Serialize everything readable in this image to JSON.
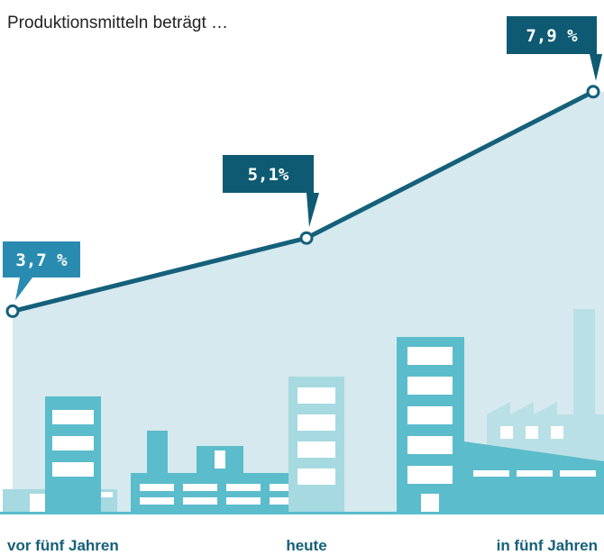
{
  "chart_data": {
    "type": "line",
    "title": "Produktionsmitteln beträgt …",
    "categories": [
      "vor fünf Jahren",
      "heute",
      "in fünf Jahren"
    ],
    "values": [
      3.7,
      5.1,
      7.9
    ],
    "value_labels": [
      "3,7 %",
      "5,1%",
      "7,9 %"
    ],
    "color": "#15607a",
    "area_color": "#d5e9ef",
    "label_colors": [
      "#2a8bb0",
      "#0f5a73",
      "#0f5a73"
    ]
  }
}
